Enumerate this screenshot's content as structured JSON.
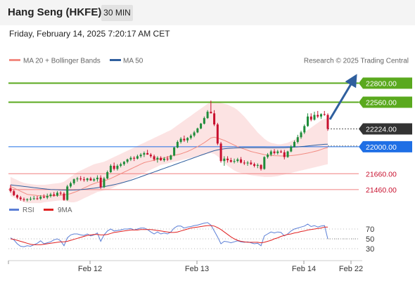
{
  "header": {
    "title": "Hang Seng (HKFE)",
    "interval": "30 MIN",
    "datetime": "Friday, February 14, 2025 7:20:17 AM CET"
  },
  "legend": {
    "items": [
      {
        "label": "MA 20 + Bollinger Bands",
        "color": "#f28b82"
      },
      {
        "label": "MA 50",
        "color": "#2f5f9e"
      }
    ],
    "credit": "Research © 2025 Trading Central"
  },
  "rsi_legend": {
    "items": [
      {
        "label": "RSI",
        "color": "#5b7fd6"
      },
      {
        "label": "9MA",
        "color": "#e02020"
      }
    ]
  },
  "colors": {
    "bull": "#1e8c3a",
    "bear": "#c8102e",
    "resistance": "#5aa91e",
    "pivot": "#1f6fe5",
    "support": "#f08080",
    "last": "#333333"
  },
  "chart_data": {
    "type": "candlestick",
    "y_range": [
      21300,
      22980
    ],
    "levels": [
      {
        "value": 22800,
        "label": "22800.00",
        "kind": "resistance"
      },
      {
        "value": 22560,
        "label": "22560.00",
        "kind": "resistance"
      },
      {
        "value": 22224,
        "label": "22224.00",
        "kind": "last"
      },
      {
        "value": 22000,
        "label": "22000.00",
        "kind": "pivot"
      },
      {
        "value": 21660,
        "label": "21660.00",
        "kind": "support"
      },
      {
        "value": 21460,
        "label": "21460.00",
        "kind": "support"
      }
    ],
    "x_ticks": [
      "Feb 12",
      "Feb 13",
      "Feb 14",
      "Feb 22"
    ],
    "candles": [
      [
        21480,
        21520,
        21420,
        21440
      ],
      [
        21440,
        21460,
        21380,
        21390
      ],
      [
        21390,
        21400,
        21340,
        21360
      ],
      [
        21360,
        21380,
        21320,
        21340
      ],
      [
        21340,
        21360,
        21310,
        21330
      ],
      [
        21330,
        21350,
        21310,
        21340
      ],
      [
        21340,
        21370,
        21320,
        21345
      ],
      [
        21345,
        21380,
        21330,
        21350
      ],
      [
        21350,
        21380,
        21330,
        21345
      ],
      [
        21345,
        21390,
        21330,
        21370
      ],
      [
        21370,
        21400,
        21350,
        21360
      ],
      [
        21360,
        21410,
        21340,
        21380
      ],
      [
        21380,
        21420,
        21360,
        21400
      ],
      [
        21400,
        21430,
        21370,
        21385
      ],
      [
        21385,
        21440,
        21370,
        21420
      ],
      [
        21420,
        21440,
        21390,
        21410
      ],
      [
        21410,
        21430,
        21320,
        21330
      ],
      [
        21330,
        21520,
        21320,
        21500
      ],
      [
        21500,
        21560,
        21480,
        21540
      ],
      [
        21540,
        21600,
        21520,
        21590
      ],
      [
        21590,
        21620,
        21560,
        21600
      ],
      [
        21600,
        21630,
        21570,
        21590
      ],
      [
        21590,
        21620,
        21560,
        21580
      ],
      [
        21580,
        21610,
        21560,
        21600
      ],
      [
        21600,
        21620,
        21570,
        21575
      ],
      [
        21575,
        21610,
        21560,
        21590
      ],
      [
        21590,
        21640,
        21560,
        21610
      ],
      [
        21610,
        21640,
        21470,
        21490
      ],
      [
        21490,
        21620,
        21480,
        21600
      ],
      [
        21600,
        21700,
        21590,
        21680
      ],
      [
        21680,
        21780,
        21670,
        21760
      ],
      [
        21760,
        21800,
        21700,
        21720
      ],
      [
        21720,
        21780,
        21700,
        21760
      ],
      [
        21760,
        21800,
        21740,
        21780
      ],
      [
        21780,
        21820,
        21760,
        21810
      ],
      [
        21810,
        21850,
        21790,
        21840
      ],
      [
        21840,
        21880,
        21820,
        21860
      ],
      [
        21860,
        21880,
        21820,
        21850
      ],
      [
        21850,
        21900,
        21840,
        21880
      ],
      [
        21880,
        21920,
        21860,
        21900
      ],
      [
        21900,
        21940,
        21870,
        21920
      ],
      [
        21920,
        21960,
        21900,
        21900
      ],
      [
        21900,
        21920,
        21860,
        21880
      ],
      [
        21880,
        21900,
        21820,
        21840
      ],
      [
        21840,
        21880,
        21800,
        21860
      ],
      [
        21860,
        21880,
        21820,
        21830
      ],
      [
        21830,
        21870,
        21810,
        21850
      ],
      [
        21850,
        21880,
        21820,
        21840
      ],
      [
        21840,
        21900,
        21830,
        21890
      ],
      [
        21890,
        22000,
        21880,
        21990
      ],
      [
        21990,
        22080,
        21980,
        22060
      ],
      [
        22060,
        22120,
        22040,
        22100
      ],
      [
        22100,
        22140,
        22060,
        22080
      ],
      [
        22080,
        22120,
        22050,
        22110
      ],
      [
        22110,
        22160,
        22090,
        22140
      ],
      [
        22140,
        22200,
        22120,
        22180
      ],
      [
        22180,
        22240,
        22170,
        22230
      ],
      [
        22230,
        22300,
        22220,
        22290
      ],
      [
        22290,
        22380,
        22280,
        22360
      ],
      [
        22360,
        22460,
        22350,
        22440
      ],
      [
        22440,
        22580,
        22420,
        22420
      ],
      [
        22420,
        22460,
        22260,
        22280
      ],
      [
        22280,
        22300,
        22020,
        22040
      ],
      [
        22040,
        22060,
        21800,
        21820
      ],
      [
        21820,
        21880,
        21760,
        21850
      ],
      [
        21850,
        21880,
        21800,
        21830
      ],
      [
        21830,
        21860,
        21800,
        21810
      ],
      [
        21810,
        21850,
        21790,
        21820
      ],
      [
        21820,
        21860,
        21800,
        21840
      ],
      [
        21840,
        21870,
        21790,
        21800
      ],
      [
        21800,
        21830,
        21770,
        21790
      ],
      [
        21790,
        21820,
        21760,
        21800
      ],
      [
        21800,
        21830,
        21770,
        21780
      ],
      [
        21780,
        21800,
        21740,
        21760
      ],
      [
        21760,
        21790,
        21730,
        21770
      ],
      [
        21770,
        21780,
        21700,
        21720
      ],
      [
        21720,
        21880,
        21710,
        21870
      ],
      [
        21870,
        21920,
        21850,
        21900
      ],
      [
        21900,
        21960,
        21880,
        21940
      ],
      [
        21940,
        21970,
        21900,
        21920
      ],
      [
        21920,
        21960,
        21900,
        21940
      ],
      [
        21940,
        21960,
        21920,
        21930
      ],
      [
        21930,
        21960,
        21840,
        21870
      ],
      [
        21870,
        21950,
        21860,
        21940
      ],
      [
        21940,
        22020,
        21930,
        22000
      ],
      [
        22000,
        22080,
        21990,
        22060
      ],
      [
        22060,
        22150,
        22040,
        22120
      ],
      [
        22120,
        22200,
        22100,
        22180
      ],
      [
        22180,
        22280,
        22160,
        22260
      ],
      [
        22260,
        22420,
        22250,
        22380
      ],
      [
        22380,
        22420,
        22320,
        22340
      ],
      [
        22340,
        22440,
        22330,
        22400
      ],
      [
        22400,
        22450,
        22360,
        22380
      ],
      [
        22380,
        22420,
        22350,
        22410
      ],
      [
        22410,
        22450,
        22390,
        22400
      ],
      [
        22400,
        22420,
        22200,
        22224
      ]
    ],
    "ma20": [
      21500,
      21480,
      21460,
      21440,
      21420,
      21400,
      21395,
      21390,
      21385,
      21382,
      21380,
      21380,
      21382,
      21384,
      21386,
      21390,
      21395,
      21400,
      21410,
      21425,
      21440,
      21460,
      21480,
      21500,
      21520,
      21535,
      21550,
      21560,
      21570,
      21585,
      21600,
      21620,
      21640,
      21660,
      21680,
      21700,
      21720,
      21740,
      21760,
      21780,
      21800,
      21810,
      21820,
      21830,
      21840,
      21850,
      21860,
      21870,
      21880,
      21890,
      21900,
      21910,
      21925,
      21940,
      21960,
      21980,
      22000,
      22025,
      22050,
      22080,
      22110,
      22120,
      22110,
      22095,
      22080,
      22060,
      22040,
      22020,
      22000,
      21985,
      21970,
      21955,
      21940,
      21930,
      21920,
      21910,
      21900,
      21895,
      21890,
      21887,
      21885,
      21884,
      21884,
      21886,
      21888,
      21892,
      21898,
      21905,
      21912,
      21920,
      21930,
      21940,
      21950,
      21965,
      21980,
      21990
    ],
    "bb_upper": [
      21620,
      21600,
      21580,
      21560,
      21545,
      21535,
      21530,
      21525,
      21520,
      21520,
      21520,
      21525,
      21530,
      21535,
      21540,
      21545,
      21560,
      21590,
      21620,
      21650,
      21680,
      21700,
      21720,
      21740,
      21760,
      21780,
      21790,
      21800,
      21810,
      21830,
      21850,
      21870,
      21890,
      21910,
      21930,
      21950,
      21970,
      21990,
      22010,
      22030,
      22050,
      22070,
      22090,
      22110,
      22130,
      22150,
      22170,
      22190,
      22210,
      22240,
      22270,
      22300,
      22330,
      22360,
      22390,
      22420,
      22450,
      22480,
      22510,
      22540,
      22560,
      22570,
      22560,
      22550,
      22540,
      22530,
      22510,
      22490,
      22460,
      22420,
      22380,
      22330,
      22280,
      22230,
      22180,
      22140,
      22100,
      22070,
      22050,
      22040,
      22030,
      22030,
      22040,
      22050,
      22070,
      22090,
      22120,
      22150,
      22180,
      22210,
      22240,
      22270,
      22300,
      22330,
      22350,
      22360
    ],
    "bb_lower": [
      21380,
      21360,
      21340,
      21320,
      21300,
      21290,
      21290,
      21290,
      21290,
      21290,
      21300,
      21305,
      21310,
      21315,
      21320,
      21325,
      21320,
      21310,
      21300,
      21300,
      21310,
      21330,
      21350,
      21370,
      21390,
      21410,
      21430,
      21440,
      21450,
      21460,
      21470,
      21490,
      21510,
      21530,
      21550,
      21570,
      21590,
      21610,
      21630,
      21650,
      21670,
      21690,
      21710,
      21730,
      21750,
      21770,
      21780,
      21790,
      21800,
      21810,
      21820,
      21830,
      21840,
      21850,
      21860,
      21870,
      21880,
      21890,
      21900,
      21910,
      21920,
      21910,
      21880,
      21840,
      21800,
      21760,
      21730,
      21700,
      21680,
      21670,
      21660,
      21650,
      21640,
      21635,
      21630,
      21625,
      21620,
      21620,
      21620,
      21625,
      21630,
      21640,
      21650,
      21660,
      21670,
      21680,
      21690,
      21700,
      21710,
      21720,
      21730,
      21740,
      21750,
      21760,
      21770,
      21780
    ],
    "ma50": [
      21520,
      21515,
      21510,
      21505,
      21500,
      21495,
      21490,
      21485,
      21480,
      21475,
      21470,
      21465,
      21462,
      21460,
      21458,
      21456,
      21455,
      21454,
      21454,
      21455,
      21457,
      21460,
      21464,
      21468,
      21473,
      21478,
      21484,
      21490,
      21497,
      21505,
      21513,
      21522,
      21532,
      21542,
      21553,
      21565,
      21578,
      21592,
      21607,
      21622,
      21637,
      21652,
      21667,
      21682,
      21697,
      21712,
      21727,
      21742,
      21757,
      21772,
      21787,
      21802,
      21817,
      21832,
      21847,
      21862,
      21877,
      21892,
      21907,
      21922,
      21937,
      21950,
      21960,
      21968,
      21974,
      21978,
      21981,
      21983,
      21985,
      21986,
      21987,
      21988,
      21988,
      21988,
      21988,
      21988,
      21987,
      21986,
      21986,
      21986,
      21986,
      21987,
      21988,
      21990,
      21992,
      21995,
      21998,
      22002,
      22006,
      22010,
      22014,
      22018,
      22022,
      22026,
      22030,
      22032
    ],
    "rsi_ticks": [
      70,
      50,
      30
    ],
    "rsi_range": [
      10,
      90
    ],
    "rsi": [
      52,
      48,
      40,
      35,
      34,
      36,
      35,
      38,
      41,
      46,
      40,
      42,
      44,
      48,
      50,
      46,
      36,
      52,
      58,
      60,
      60,
      58,
      57,
      60,
      56,
      58,
      62,
      45,
      58,
      66,
      70,
      66,
      67,
      68,
      70,
      70,
      71,
      68,
      70,
      72,
      72,
      69,
      64,
      60,
      64,
      60,
      62,
      60,
      64,
      72,
      76,
      76,
      72,
      74,
      75,
      77,
      78,
      80,
      82,
      83,
      78,
      66,
      54,
      40,
      45,
      44,
      42,
      44,
      46,
      44,
      43,
      44,
      42,
      40,
      41,
      36,
      56,
      60,
      64,
      62,
      64,
      63,
      56,
      60,
      66,
      70,
      72,
      74,
      76,
      80,
      75,
      77,
      74,
      76,
      77,
      50
    ],
    "rsi_ma": [
      50,
      49,
      47,
      45,
      43,
      41,
      39,
      38,
      38,
      38,
      39,
      40,
      41,
      42,
      43,
      44,
      44,
      45,
      47,
      49,
      51,
      53,
      55,
      57,
      58,
      59,
      59,
      58,
      58,
      59,
      61,
      63,
      64,
      65,
      66,
      67,
      68,
      68,
      68,
      69,
      69,
      69,
      69,
      68,
      67,
      66,
      65,
      64,
      63,
      63,
      64,
      66,
      68,
      70,
      72,
      73,
      74,
      75,
      76,
      77,
      77,
      76,
      73,
      69,
      64,
      59,
      54,
      50,
      47,
      45,
      44,
      43,
      43,
      43,
      43,
      42,
      43,
      45,
      47,
      50,
      52,
      55,
      57,
      59,
      60,
      62,
      63,
      65,
      66,
      68,
      69,
      70,
      71,
      72,
      74,
      74
    ]
  }
}
